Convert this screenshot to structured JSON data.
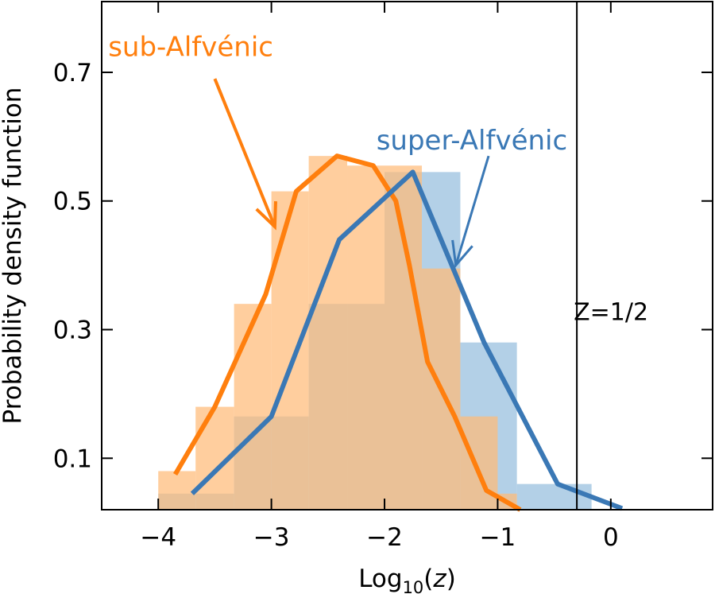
{
  "chart_data": {
    "type": "bar",
    "xlabel_main": "Log",
    "xlabel_sub": "10",
    "xlabel_open": "(",
    "xlabel_var": "z",
    "xlabel_close": ")",
    "ylabel": "Probability density function",
    "xlim": [
      -4.5,
      0.9
    ],
    "ylim": [
      0.02,
      0.81
    ],
    "xticks": [
      -4,
      -3,
      -2,
      -1,
      0
    ],
    "xtick_labels": [
      "−4",
      "−3",
      "−2",
      "−1",
      "0"
    ],
    "yticks": [
      0.1,
      0.3,
      0.5,
      0.7
    ],
    "ytick_labels": [
      "0.1",
      "0.3",
      "0.5",
      "0.7"
    ],
    "grid": false,
    "series": [
      {
        "name": "sub-Alfvénic",
        "color": "#ff7f0e",
        "hist_color": "#ffbb78",
        "bins": [
          {
            "x0": -4.0,
            "x1": -3.67,
            "value": 0.08
          },
          {
            "x0": -3.67,
            "x1": -3.33,
            "value": 0.18
          },
          {
            "x0": -3.33,
            "x1": -3.0,
            "value": 0.34
          },
          {
            "x0": -3.0,
            "x1": -2.67,
            "value": 0.515
          },
          {
            "x0": -2.67,
            "x1": -2.33,
            "value": 0.57
          },
          {
            "x0": -2.33,
            "x1": -2.0,
            "value": 0.555
          },
          {
            "x0": -2.0,
            "x1": -1.67,
            "value": 0.555
          },
          {
            "x0": -1.67,
            "x1": -1.33,
            "value": 0.395
          },
          {
            "x0": -1.33,
            "x1": -1.0,
            "value": 0.165
          },
          {
            "x0": -1.0,
            "x1": -0.83,
            "value": 0.045
          }
        ],
        "line": {
          "x": [
            -3.85,
            -3.5,
            -3.05,
            -2.78,
            -2.42,
            -2.1,
            -1.9,
            -1.78,
            -1.62,
            -1.38,
            -1.1,
            -0.8
          ],
          "y": [
            0.075,
            0.18,
            0.355,
            0.515,
            0.57,
            0.555,
            0.5,
            0.4,
            0.25,
            0.165,
            0.05,
            0.02
          ]
        },
        "label_text": "sub-Alfvénic",
        "label_pos": [
          -4.0,
          0.74
        ],
        "arrow_from": [
          -3.5,
          0.69
        ],
        "arrow_to": [
          -2.97,
          0.46
        ]
      },
      {
        "name": "super-Alfvénic",
        "color": "#3a78b5",
        "hist_color": "#a6c8e3",
        "bins": [
          {
            "x0": -4.0,
            "x1": -3.67,
            "value": 0.045
          },
          {
            "x0": -3.67,
            "x1": -3.33,
            "value": 0.045
          },
          {
            "x0": -3.33,
            "x1": -3.0,
            "value": 0.165
          },
          {
            "x0": -3.0,
            "x1": -2.67,
            "value": 0.165
          },
          {
            "x0": -2.67,
            "x1": -2.33,
            "value": 0.34
          },
          {
            "x0": -2.33,
            "x1": -2.0,
            "value": 0.34
          },
          {
            "x0": -2.0,
            "x1": -1.67,
            "value": 0.545
          },
          {
            "x0": -1.67,
            "x1": -1.33,
            "value": 0.545
          },
          {
            "x0": -1.33,
            "x1": -0.83,
            "value": 0.28
          },
          {
            "x0": -0.83,
            "x1": -0.17,
            "value": 0.06
          }
        ],
        "line": {
          "x": [
            -3.7,
            -3.0,
            -2.4,
            -1.75,
            -1.12,
            -0.47,
            0.1
          ],
          "y": [
            0.045,
            0.165,
            0.44,
            0.545,
            0.28,
            0.06,
            0.022
          ]
        },
        "label_text": "super-Alfvénic",
        "label_pos": [
          -1.63,
          0.595
        ],
        "arrow_from": [
          -1.08,
          0.57
        ],
        "arrow_to": [
          -1.37,
          0.4
        ]
      }
    ],
    "vline": {
      "x": -0.3,
      "label": "Z=1/2",
      "color": "#000000"
    }
  }
}
